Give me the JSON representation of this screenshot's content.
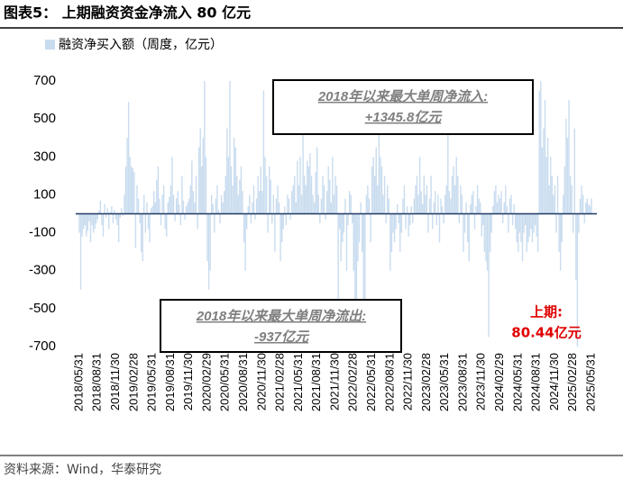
{
  "chart_data": {
    "type": "bar",
    "title": "图表5： 上期融资资金净流入 80 亿元",
    "legend": "融资净买入额（周度，亿元）",
    "source": "资料来源：Wind，华泰研究",
    "annotations": [
      {
        "lines": [
          "2018年以来最大单周净流入:",
          "+1345.8亿元"
        ]
      },
      {
        "lines": [
          "2018年以来最大单周净流出:",
          "-937亿元"
        ]
      },
      {
        "lines": [
          "上期:",
          "80.44亿元"
        ]
      }
    ],
    "color": "#c9dcef",
    "zero_line_color": "#1f3864",
    "ylim": [
      -700,
      700
    ],
    "yticks": [
      700,
      500,
      300,
      100,
      -100,
      -300,
      -500,
      -700
    ],
    "categories": [
      "2018/05/31",
      null,
      null,
      null,
      null,
      null,
      null,
      null,
      null,
      null,
      null,
      null,
      null,
      "2018/08/31",
      null,
      null,
      null,
      null,
      null,
      null,
      null,
      null,
      null,
      null,
      null,
      null,
      "2018/11/30",
      null,
      null,
      null,
      null,
      null,
      null,
      null,
      null,
      null,
      null,
      null,
      null,
      "2019/02/28",
      null,
      null,
      null,
      null,
      null,
      null,
      null,
      null,
      null,
      null,
      null,
      null,
      "2019/05/31",
      null,
      null,
      null,
      null,
      null,
      null,
      null,
      null,
      null,
      null,
      null,
      null,
      "2019/08/31",
      null,
      null,
      null,
      null,
      null,
      null,
      null,
      null,
      null,
      null,
      null,
      null,
      "2019/11/30",
      null,
      null,
      null,
      null,
      null,
      null,
      null,
      null,
      null,
      null,
      null,
      null,
      "2020/02/29",
      null,
      null,
      null,
      null,
      null,
      null,
      null,
      null,
      null,
      null,
      null,
      null,
      "2020/05/31",
      null,
      null,
      null,
      null,
      null,
      null,
      null,
      null,
      null,
      null,
      null,
      null,
      "2020/08/31",
      null,
      null,
      null,
      null,
      null,
      null,
      null,
      null,
      null,
      null,
      null,
      null,
      "2020/11/30",
      null,
      null,
      null,
      null,
      null,
      null,
      null,
      null,
      null,
      null,
      null,
      null,
      "2021/02/28",
      null,
      null,
      null,
      null,
      null,
      null,
      null,
      null,
      null,
      null,
      null,
      null,
      "2021/05/31",
      null,
      null,
      null,
      null,
      null,
      null,
      null,
      null,
      null,
      null,
      null,
      null,
      "2021/08/31",
      null,
      null,
      null,
      null,
      null,
      null,
      null,
      null,
      null,
      null,
      null,
      null,
      "2021/11/30",
      null,
      null,
      null,
      null,
      null,
      null,
      null,
      null,
      null,
      null,
      null,
      null,
      "2022/02/28",
      null,
      null,
      null,
      null,
      null,
      null,
      null,
      null,
      null,
      null,
      null,
      null,
      "2022/05/31",
      null,
      null,
      null,
      null,
      null,
      null,
      null,
      null,
      null,
      null,
      null,
      null,
      "2022/08/31",
      null,
      null,
      null,
      null,
      null,
      null,
      null,
      null,
      null,
      null,
      null,
      null,
      "2022/11/30",
      null,
      null,
      null,
      null,
      null,
      null,
      null,
      null,
      null,
      null,
      null,
      null,
      "2023/02/28",
      null,
      null,
      null,
      null,
      null,
      null,
      null,
      null,
      null,
      null,
      null,
      null,
      "2023/05/31",
      null,
      null,
      null,
      null,
      null,
      null,
      null,
      null,
      null,
      null,
      null,
      null,
      "2023/08/31",
      null,
      null,
      null,
      null,
      null,
      null,
      null,
      null,
      null,
      null,
      null,
      null,
      "2023/11/30",
      null,
      null,
      null,
      null,
      null,
      null,
      null,
      null,
      null,
      null,
      null,
      null,
      "2024/02/29",
      null,
      null,
      null,
      null,
      null,
      null,
      null,
      null,
      null,
      null,
      null,
      null,
      "2024/05/31",
      null,
      null,
      null,
      null,
      null,
      null,
      null,
      null,
      null,
      null,
      null,
      null,
      "2024/08/31",
      null,
      null,
      null,
      null,
      null,
      null,
      null,
      null,
      null,
      null,
      null,
      null,
      "2024/11/30",
      null,
      null,
      null,
      null,
      null,
      null,
      null,
      null,
      null,
      null,
      null,
      null,
      "2025/02/28",
      null,
      null,
      null,
      null,
      null,
      null,
      null,
      null,
      null,
      null,
      null,
      null,
      "2025/05/31"
    ],
    "values": [
      -100,
      -400,
      -120,
      -80,
      -60,
      -120,
      -90,
      -40,
      -150,
      -60,
      -100,
      -80,
      -50,
      -30,
      20,
      70,
      -60,
      -120,
      50,
      -20,
      30,
      -80,
      10,
      40,
      -50,
      20,
      -30,
      -60,
      -150,
      -20,
      30,
      -10,
      100,
      250,
      400,
      590,
      300,
      250,
      240,
      220,
      -180,
      150,
      80,
      -50,
      -200,
      -250,
      100,
      -100,
      60,
      -80,
      -150,
      30,
      40,
      120,
      60,
      180,
      250,
      80,
      -60,
      100,
      150,
      -80,
      -120,
      60,
      90,
      150,
      300,
      100,
      -40,
      80,
      120,
      50,
      -60,
      200,
      70,
      -30,
      40,
      60,
      80,
      150,
      280,
      120,
      60,
      200,
      -80,
      350,
      450,
      250,
      400,
      700,
      300,
      -250,
      -400,
      -300,
      100,
      50,
      -100,
      80,
      150,
      20,
      -50,
      100,
      60,
      120,
      200,
      450,
      300,
      700,
      250,
      150,
      400,
      350,
      200,
      100,
      180,
      250,
      120,
      -150,
      -300,
      -80,
      40,
      100,
      -50,
      60,
      150,
      -30,
      80,
      200,
      120,
      250,
      120,
      650,
      300,
      200,
      -100,
      250,
      180,
      -50,
      100,
      -200,
      80,
      150,
      60,
      -250,
      -150,
      -80,
      40,
      -60,
      100,
      80,
      -30,
      120,
      150,
      200,
      60,
      280,
      150,
      300,
      100,
      420,
      200,
      150,
      280,
      250,
      320,
      200,
      100,
      60,
      220,
      350,
      100,
      -50,
      80,
      200,
      150,
      -30,
      120,
      250,
      180,
      60,
      300,
      100,
      200,
      150,
      -450,
      -80,
      -250,
      -150,
      -100,
      80,
      -300,
      -60,
      120,
      100,
      -50,
      -300,
      -450,
      -550,
      -250,
      -150,
      60,
      -200,
      -450,
      -500,
      100,
      150,
      80,
      -150,
      250,
      300,
      200,
      350,
      150,
      500,
      300,
      250,
      100,
      200,
      -50,
      150,
      80,
      -300,
      -200,
      -100,
      -150,
      -80,
      50,
      -50,
      -200,
      -100,
      80,
      150,
      -80,
      40,
      -120,
      -60,
      40,
      -50,
      80,
      150,
      200,
      100,
      300,
      120,
      50,
      200,
      100,
      150,
      -100,
      80,
      200,
      -80,
      60,
      120,
      -60,
      100,
      -150,
      80,
      40,
      -50,
      100,
      150,
      420,
      120,
      80,
      200,
      250,
      150,
      300,
      200,
      -50,
      150,
      100,
      -200,
      -100,
      60,
      -150,
      -250,
      50,
      100,
      120,
      -80,
      40,
      150,
      80,
      60,
      -120,
      -60,
      -200,
      -250,
      -300,
      -650,
      -200,
      -100,
      40,
      120,
      150,
      60,
      100,
      80,
      120,
      -50,
      60,
      150,
      40,
      -100,
      80,
      100,
      -60,
      50,
      -80,
      -150,
      -200,
      -100,
      -150,
      -250,
      -100,
      -60,
      -200,
      -150,
      -120,
      -80,
      -150,
      -100,
      -60,
      -120,
      -200,
      650,
      700,
      350,
      450,
      600,
      300,
      400,
      150,
      300,
      200,
      100,
      150,
      -100,
      200,
      -200,
      -300,
      -150,
      100,
      250,
      500,
      400,
      600,
      200,
      150,
      -100,
      450,
      -350,
      -700,
      -100,
      80,
      150,
      100,
      -50,
      60,
      80,
      50,
      40,
      80.44
    ]
  }
}
